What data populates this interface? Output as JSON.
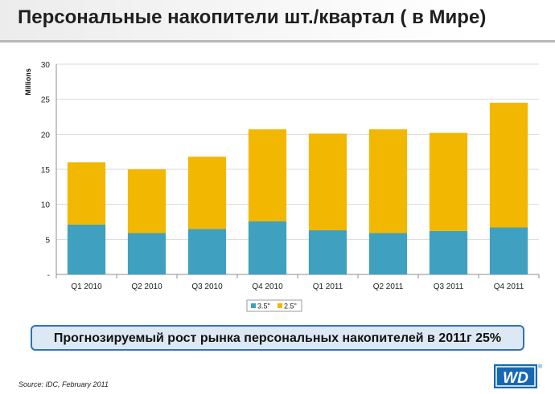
{
  "header": {
    "title": "Персональные накопители шт./квартал ( в Мире)"
  },
  "banner": {
    "text": "Прогнозируемый рост рынка персональных накопителей в 2011г  25%"
  },
  "footer": {
    "source": "Source: IDC, February 2011"
  },
  "logo": {
    "text": "WD",
    "registered": "®",
    "color": "#1768b3"
  },
  "chart_data": {
    "type": "bar",
    "stacked": true,
    "categories": [
      "Q1 2010",
      "Q2 2010",
      "Q3 2010",
      "Q4 2010",
      "Q1 2011",
      "Q2 2011",
      "Q3 2011",
      "Q4 2011"
    ],
    "series": [
      {
        "name": "3.5\"",
        "values": [
          7.1,
          5.9,
          6.5,
          7.6,
          6.3,
          5.9,
          6.2,
          6.7
        ],
        "color": "#3fa0bf"
      },
      {
        "name": "2.5\"",
        "values": [
          8.9,
          9.1,
          10.3,
          13.1,
          13.8,
          14.8,
          14.0,
          17.8
        ],
        "color": "#f2b700"
      }
    ],
    "ylabel": "Millions",
    "ylim": [
      0,
      30
    ],
    "yticks": [
      0,
      5,
      10,
      15,
      20,
      25,
      30
    ],
    "ytick_labels": [
      "-",
      "5",
      "10",
      "15",
      "20",
      "25",
      "30"
    ],
    "grid": true,
    "legend": "bottom"
  }
}
